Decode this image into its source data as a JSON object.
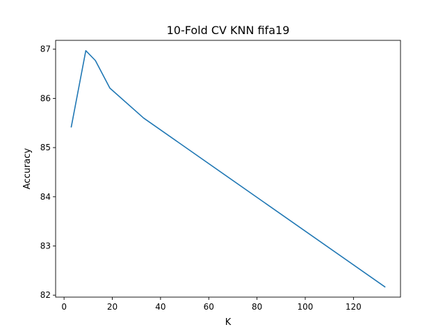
{
  "chart_data": {
    "type": "line",
    "title": "10-Fold CV  KNN fifa19",
    "xlabel": "K",
    "ylabel": "Accuracy",
    "xlim": [
      -3.5,
      139.5
    ],
    "ylim": [
      81.96,
      87.18
    ],
    "xticks": [
      0,
      20,
      40,
      60,
      80,
      100,
      120
    ],
    "yticks": [
      82,
      83,
      84,
      85,
      86,
      87
    ],
    "grid": false,
    "legend": false,
    "series": [
      {
        "color": "#1f77b4",
        "x": [
          3,
          9,
          13,
          19,
          33,
          133
        ],
        "y": [
          85.42,
          86.97,
          86.77,
          86.21,
          85.6,
          82.17
        ]
      }
    ]
  }
}
